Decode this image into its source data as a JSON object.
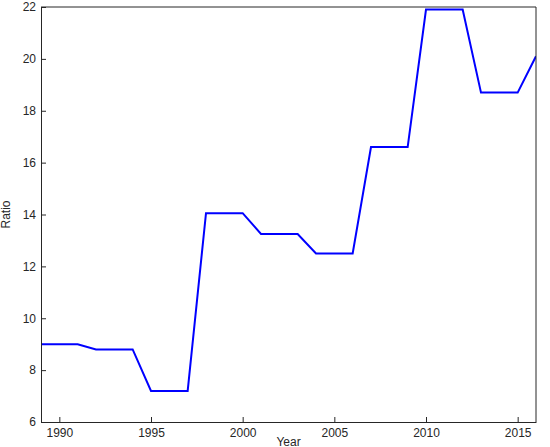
{
  "chart_data": {
    "type": "line",
    "x_label": "Year",
    "y_label": "Ratio",
    "x": [
      1989,
      1990,
      1991,
      1992,
      1993,
      1994,
      1995,
      1996,
      1997,
      1998,
      1999,
      2000,
      2001,
      2002,
      2003,
      2004,
      2005,
      2006,
      2007,
      2008,
      2009,
      2010,
      2011,
      2012,
      2013,
      2014,
      2015,
      2016
    ],
    "values": [
      9.0,
      9.0,
      9.0,
      8.8,
      8.8,
      8.8,
      7.2,
      7.2,
      7.2,
      14.05,
      14.05,
      14.05,
      13.25,
      13.25,
      13.25,
      12.5,
      12.5,
      12.5,
      16.6,
      16.6,
      16.6,
      21.9,
      21.9,
      21.9,
      18.7,
      18.7,
      18.7,
      20.1
    ],
    "color": "#0000ff",
    "xlim": [
      1989,
      2016
    ],
    "ylim": [
      6,
      22
    ],
    "xticks": [
      1990,
      1995,
      2000,
      2005,
      2010,
      2015
    ],
    "yticks": [
      6,
      8,
      10,
      12,
      14,
      16,
      18,
      20,
      22
    ],
    "grid": false
  }
}
